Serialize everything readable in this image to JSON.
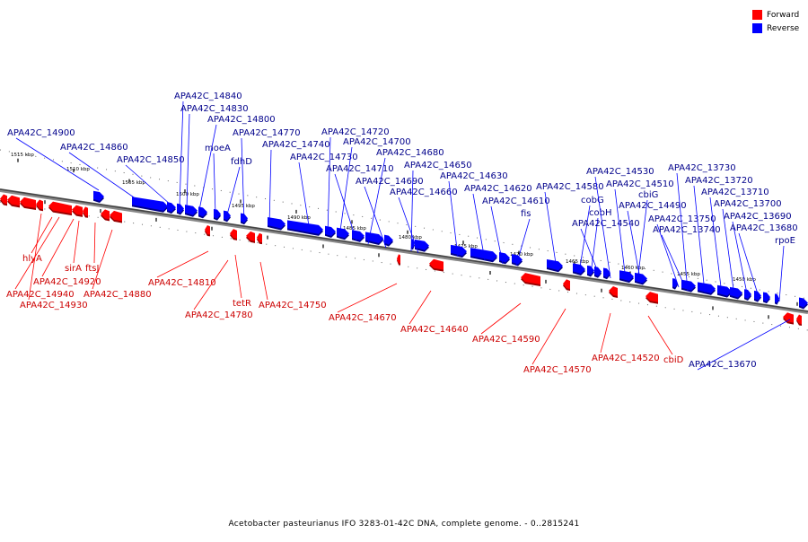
{
  "legend": {
    "forward_label": "Forward",
    "reverse_label": "Reverse",
    "forward_color": "#ff0000",
    "reverse_color": "#0000ff"
  },
  "caption": "Acetobacter pasteurianus IFO 3283-01-42C DNA, complete genome. - 0..2815241",
  "scale_ticks": [
    "1515 kbp",
    "1510 kbp",
    "1505 kbp",
    "1500 kbp",
    "1495 kbp",
    "1490 kbp",
    "1485 kbp",
    "1480 kbp",
    "1475 kbp",
    "1470 kbp",
    "1465 kbp",
    "1460 kbp",
    "1455 kbp",
    "1450 kbp"
  ],
  "reverse_genes": [
    "APA42C_14900",
    "APA42C_14860",
    "APA42C_14850",
    "APA42C_14840",
    "APA42C_14830",
    "APA42C_14800",
    "moeA",
    "fdhD",
    "APA42C_14770",
    "APA42C_14740",
    "APA42C_14730",
    "APA42C_14720",
    "APA42C_14700",
    "APA42C_14710",
    "APA42C_14680",
    "APA42C_14690",
    "APA42C_14650",
    "APA42C_14660",
    "APA42C_14630",
    "APA42C_14620",
    "APA42C_14610",
    "fis",
    "APA42C_14580",
    "cobG",
    "cobH",
    "APA42C_14540",
    "APA42C_14530",
    "APA42C_14510",
    "cbiG",
    "APA42C_14490",
    "APA42C_13750",
    "APA42C_13740",
    "APA42C_13730",
    "APA42C_13720",
    "APA42C_13710",
    "APA42C_13700",
    "APA42C_13690",
    "APA42C_13680",
    "rpoE",
    "APA42C_13670"
  ],
  "forward_genes": [
    "hlyA",
    "sirA",
    "ftsJ",
    "APA42C_14920",
    "APA42C_14940",
    "APA42C_14930",
    "APA42C_14880",
    "APA42C_14810",
    "tetR",
    "APA42C_14780",
    "APA42C_14750",
    "APA42C_14670",
    "APA42C_14640",
    "APA42C_14590",
    "APA42C_14570",
    "APA42C_14520",
    "cbiD"
  ]
}
